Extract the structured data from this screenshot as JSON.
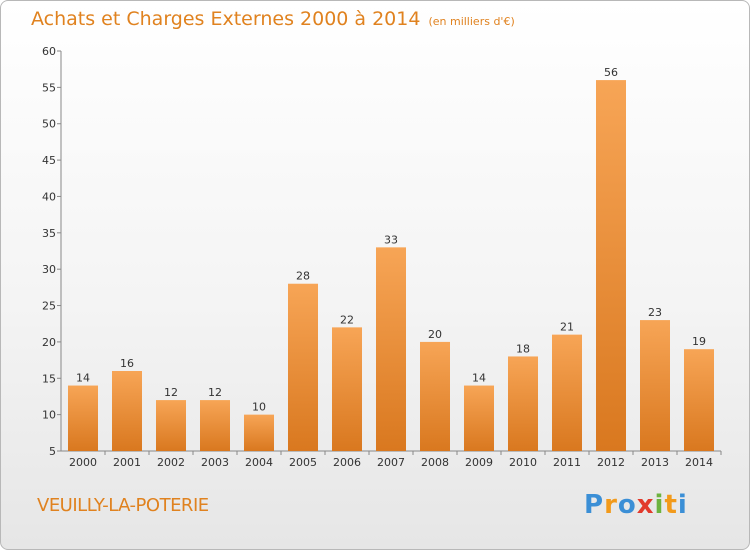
{
  "header": {
    "title": "Achats et Charges Externes 2000 à 2014",
    "unit": "(en milliers d'€)"
  },
  "footer": {
    "commune": "VEUILLY-LA-POTERIE",
    "logo_letters": [
      "P",
      "r",
      "o",
      "x",
      "i",
      "t",
      "i"
    ],
    "logo_colors": [
      "#3b8fd6",
      "#f29a1a",
      "#3b8fd6",
      "#e23a2c",
      "#6db33f",
      "#f29a1a",
      "#3b8fd6"
    ]
  },
  "colors": {
    "accent": "#e0821f",
    "bar_top": "#f7a556",
    "bar_bottom": "#d9781f"
  },
  "chart_data": {
    "type": "bar",
    "categories": [
      "2000",
      "2001",
      "2002",
      "2003",
      "2004",
      "2005",
      "2006",
      "2007",
      "2008",
      "2009",
      "2010",
      "2011",
      "2012",
      "2013",
      "2014"
    ],
    "values": [
      14,
      16,
      12,
      12,
      10,
      28,
      22,
      33,
      20,
      14,
      18,
      21,
      56,
      23,
      19
    ],
    "ylim": [
      5,
      60
    ],
    "yticks": [
      5,
      10,
      15,
      20,
      25,
      30,
      35,
      40,
      45,
      50,
      55,
      60
    ],
    "grid": false,
    "xlabel": "",
    "ylabel": ""
  }
}
